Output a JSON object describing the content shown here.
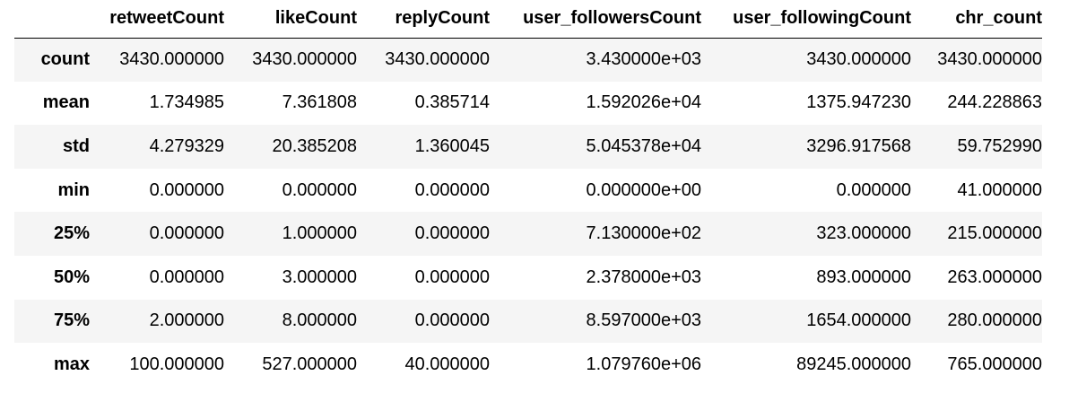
{
  "table": {
    "columns": [
      "retweetCount",
      "likeCount",
      "replyCount",
      "user_followersCount",
      "user_followingCount",
      "chr_count"
    ],
    "rows": [
      {
        "label": "count",
        "values": [
          "3430.000000",
          "3430.000000",
          "3430.000000",
          "3.430000e+03",
          "3430.000000",
          "3430.000000"
        ]
      },
      {
        "label": "mean",
        "values": [
          "1.734985",
          "7.361808",
          "0.385714",
          "1.592026e+04",
          "1375.947230",
          "244.228863"
        ]
      },
      {
        "label": "std",
        "values": [
          "4.279329",
          "20.385208",
          "1.360045",
          "5.045378e+04",
          "3296.917568",
          "59.752990"
        ]
      },
      {
        "label": "min",
        "values": [
          "0.000000",
          "0.000000",
          "0.000000",
          "0.000000e+00",
          "0.000000",
          "41.000000"
        ]
      },
      {
        "label": "25%",
        "values": [
          "0.000000",
          "1.000000",
          "0.000000",
          "7.130000e+02",
          "323.000000",
          "215.000000"
        ]
      },
      {
        "label": "50%",
        "values": [
          "0.000000",
          "3.000000",
          "0.000000",
          "2.378000e+03",
          "893.000000",
          "263.000000"
        ]
      },
      {
        "label": "75%",
        "values": [
          "2.000000",
          "8.000000",
          "0.000000",
          "8.597000e+03",
          "1654.000000",
          "280.000000"
        ]
      },
      {
        "label": "max",
        "values": [
          "100.000000",
          "527.000000",
          "40.000000",
          "1.079760e+06",
          "89245.000000",
          "765.000000"
        ]
      }
    ]
  }
}
